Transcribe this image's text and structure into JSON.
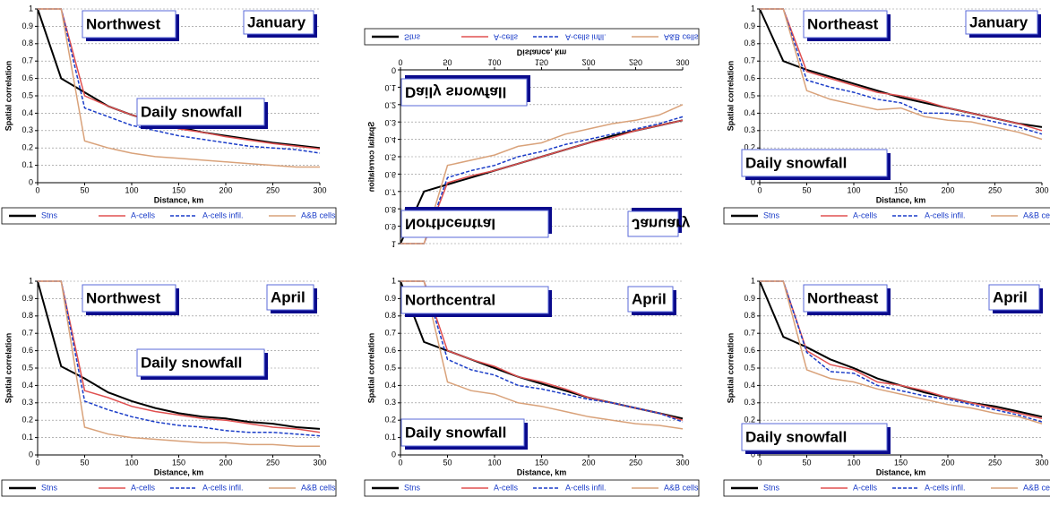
{
  "chart_data": [
    {
      "type": "line",
      "region": "Northwest",
      "month": "January",
      "annotation": "Daily snowfall",
      "xlabel": "Distance, km",
      "ylabel": "Spatial correlation",
      "x": [
        0,
        25,
        50,
        75,
        100,
        125,
        150,
        175,
        200,
        225,
        250,
        275,
        300
      ],
      "xlim": [
        0,
        300
      ],
      "ylim": [
        0,
        1
      ],
      "xticks": [
        0,
        50,
        100,
        150,
        200,
        250,
        300
      ],
      "yticks": [
        0,
        0.1,
        0.2,
        0.3,
        0.4,
        0.5,
        0.6,
        0.7,
        0.8,
        0.9,
        1
      ],
      "grid": true,
      "series": [
        {
          "name": "Stns",
          "color": "#000000",
          "values": [
            1,
            0.6,
            0.52,
            0.44,
            0.39,
            0.35,
            0.32,
            0.29,
            0.27,
            0.25,
            0.23,
            0.215,
            0.2
          ]
        },
        {
          "name": "A-cells",
          "color": "#e05050",
          "values": [
            1,
            1,
            0.5,
            0.44,
            0.39,
            0.35,
            0.31,
            0.29,
            0.265,
            0.245,
            0.225,
            0.21,
            0.195
          ]
        },
        {
          "name": "A-cells infil.",
          "color": "#1a3cc8",
          "dashed": true,
          "values": [
            1,
            1,
            0.43,
            0.38,
            0.33,
            0.3,
            0.27,
            0.25,
            0.23,
            0.21,
            0.2,
            0.19,
            0.17
          ]
        },
        {
          "name": "A&B cells",
          "color": "#d9a27a",
          "values": [
            1,
            1,
            0.24,
            0.2,
            0.17,
            0.15,
            0.14,
            0.13,
            0.12,
            0.11,
            0.1,
            0.09,
            0.09
          ]
        }
      ]
    },
    {
      "type": "line",
      "region": "Northcentral",
      "month": "January",
      "annotation": "Daily snowfall",
      "xlabel": "Distance, km",
      "ylabel": "Spatial correlation",
      "flipped": true,
      "x": [
        0,
        25,
        50,
        75,
        100,
        125,
        150,
        175,
        200,
        225,
        250,
        275,
        300
      ],
      "xlim": [
        0,
        300
      ],
      "ylim": [
        0,
        1
      ],
      "xticks": [
        0,
        50,
        100,
        150,
        200,
        250,
        300
      ],
      "yticks": [
        0,
        0.1,
        0.2,
        0.3,
        0.4,
        0.5,
        0.6,
        0.7,
        0.8,
        0.9,
        1
      ],
      "grid": true,
      "series": [
        {
          "name": "Stns",
          "color": "#000000",
          "values": [
            1,
            0.7,
            0.66,
            0.62,
            0.58,
            0.54,
            0.5,
            0.46,
            0.42,
            0.38,
            0.35,
            0.32,
            0.29
          ]
        },
        {
          "name": "A-cells",
          "color": "#e05050",
          "values": [
            1,
            1,
            0.65,
            0.61,
            0.58,
            0.54,
            0.5,
            0.46,
            0.42,
            0.39,
            0.35,
            0.32,
            0.29
          ]
        },
        {
          "name": "A-cells infil.",
          "color": "#1a3cc8",
          "dashed": true,
          "values": [
            1,
            1,
            0.62,
            0.58,
            0.55,
            0.5,
            0.47,
            0.43,
            0.4,
            0.37,
            0.34,
            0.31,
            0.27
          ]
        },
        {
          "name": "A&B cells",
          "color": "#d9a27a",
          "values": [
            1,
            1,
            0.55,
            0.52,
            0.49,
            0.44,
            0.42,
            0.37,
            0.34,
            0.31,
            0.29,
            0.26,
            0.2
          ]
        }
      ]
    },
    {
      "type": "line",
      "region": "Northeast",
      "month": "January",
      "annotation": "Daily snowfall",
      "xlabel": "Distance, km",
      "ylabel": "Spatial correlation",
      "x": [
        0,
        25,
        50,
        75,
        100,
        125,
        150,
        175,
        200,
        225,
        250,
        275,
        300
      ],
      "xlim": [
        0,
        300
      ],
      "ylim": [
        0,
        1
      ],
      "xticks": [
        0,
        50,
        100,
        150,
        200,
        250,
        300
      ],
      "yticks": [
        0,
        0.1,
        0.2,
        0.3,
        0.4,
        0.5,
        0.6,
        0.7,
        0.8,
        0.9,
        1
      ],
      "grid": true,
      "series": [
        {
          "name": "Stns",
          "color": "#000000",
          "values": [
            1,
            0.7,
            0.65,
            0.61,
            0.57,
            0.53,
            0.49,
            0.46,
            0.43,
            0.4,
            0.37,
            0.34,
            0.32
          ]
        },
        {
          "name": "A-cells",
          "color": "#e05050",
          "values": [
            1,
            1,
            0.64,
            0.6,
            0.56,
            0.52,
            0.5,
            0.47,
            0.43,
            0.4,
            0.37,
            0.34,
            0.3
          ]
        },
        {
          "name": "A-cells infil.",
          "color": "#1a3cc8",
          "dashed": true,
          "values": [
            1,
            1,
            0.59,
            0.55,
            0.52,
            0.48,
            0.46,
            0.4,
            0.4,
            0.38,
            0.35,
            0.32,
            0.28
          ]
        },
        {
          "name": "A&B cells",
          "color": "#d9a27a",
          "values": [
            1,
            1,
            0.53,
            0.48,
            0.45,
            0.42,
            0.43,
            0.38,
            0.36,
            0.35,
            0.32,
            0.29,
            0.25
          ]
        }
      ]
    },
    {
      "type": "line",
      "region": "Northwest",
      "month": "April",
      "annotation": "Daily snowfall",
      "xlabel": "Distance, km",
      "ylabel": "Spatial correlation",
      "x": [
        0,
        25,
        50,
        75,
        100,
        125,
        150,
        175,
        200,
        225,
        250,
        275,
        300
      ],
      "xlim": [
        0,
        300
      ],
      "ylim": [
        0,
        1
      ],
      "xticks": [
        0,
        50,
        100,
        150,
        200,
        250,
        300
      ],
      "yticks": [
        0,
        0.1,
        0.2,
        0.3,
        0.4,
        0.5,
        0.6,
        0.7,
        0.8,
        0.9,
        1
      ],
      "grid": true,
      "series": [
        {
          "name": "Stns",
          "color": "#000000",
          "values": [
            1,
            0.51,
            0.44,
            0.36,
            0.31,
            0.27,
            0.24,
            0.22,
            0.21,
            0.19,
            0.18,
            0.16,
            0.15
          ]
        },
        {
          "name": "A-cells",
          "color": "#e05050",
          "values": [
            1,
            1,
            0.37,
            0.33,
            0.28,
            0.25,
            0.23,
            0.21,
            0.2,
            0.18,
            0.16,
            0.15,
            0.13
          ]
        },
        {
          "name": "A-cells infil.",
          "color": "#1a3cc8",
          "dashed": true,
          "values": [
            1,
            1,
            0.31,
            0.26,
            0.22,
            0.19,
            0.17,
            0.16,
            0.14,
            0.13,
            0.13,
            0.12,
            0.11
          ]
        },
        {
          "name": "A&B cells",
          "color": "#d9a27a",
          "values": [
            1,
            1,
            0.16,
            0.12,
            0.1,
            0.09,
            0.08,
            0.07,
            0.07,
            0.06,
            0.06,
            0.05,
            0.05
          ]
        }
      ]
    },
    {
      "type": "line",
      "region": "Northcentral",
      "month": "April",
      "annotation": "Daily snowfall",
      "xlabel": "Distance, km",
      "ylabel": "Spatial correlation",
      "x": [
        0,
        25,
        50,
        75,
        100,
        125,
        150,
        175,
        200,
        225,
        250,
        275,
        300
      ],
      "xlim": [
        0,
        300
      ],
      "ylim": [
        0,
        1
      ],
      "xticks": [
        0,
        50,
        100,
        150,
        200,
        250,
        300
      ],
      "yticks": [
        0,
        0.1,
        0.2,
        0.3,
        0.4,
        0.5,
        0.6,
        0.7,
        0.8,
        0.9,
        1
      ],
      "grid": true,
      "series": [
        {
          "name": "Stns",
          "color": "#000000",
          "values": [
            1,
            0.65,
            0.6,
            0.55,
            0.5,
            0.45,
            0.41,
            0.37,
            0.33,
            0.3,
            0.27,
            0.24,
            0.21
          ]
        },
        {
          "name": "A-cells",
          "color": "#e05050",
          "values": [
            1,
            1,
            0.6,
            0.55,
            0.51,
            0.45,
            0.42,
            0.38,
            0.33,
            0.3,
            0.27,
            0.24,
            0.2
          ]
        },
        {
          "name": "A-cells infil.",
          "color": "#1a3cc8",
          "dashed": true,
          "values": [
            1,
            1,
            0.55,
            0.49,
            0.46,
            0.4,
            0.38,
            0.35,
            0.32,
            0.3,
            0.27,
            0.24,
            0.19
          ]
        },
        {
          "name": "A&B cells",
          "color": "#d9a27a",
          "values": [
            1,
            1,
            0.42,
            0.37,
            0.35,
            0.3,
            0.28,
            0.25,
            0.22,
            0.2,
            0.18,
            0.17,
            0.15
          ]
        }
      ]
    },
    {
      "type": "line",
      "region": "Northeast",
      "month": "April",
      "annotation": "Daily snowfall",
      "xlabel": "Distance, km",
      "ylabel": "Spatial correlation",
      "x": [
        0,
        25,
        50,
        75,
        100,
        125,
        150,
        175,
        200,
        225,
        250,
        275,
        300
      ],
      "xlim": [
        0,
        300
      ],
      "ylim": [
        0,
        1
      ],
      "xticks": [
        0,
        50,
        100,
        150,
        200,
        250,
        300
      ],
      "yticks": [
        0,
        0.1,
        0.2,
        0.3,
        0.4,
        0.5,
        0.6,
        0.7,
        0.8,
        0.9,
        1
      ],
      "grid": true,
      "series": [
        {
          "name": "Stns",
          "color": "#000000",
          "values": [
            1,
            0.68,
            0.62,
            0.55,
            0.5,
            0.44,
            0.4,
            0.36,
            0.33,
            0.3,
            0.28,
            0.25,
            0.22
          ]
        },
        {
          "name": "A-cells",
          "color": "#e05050",
          "values": [
            1,
            1,
            0.6,
            0.52,
            0.49,
            0.42,
            0.4,
            0.37,
            0.33,
            0.3,
            0.27,
            0.24,
            0.21
          ]
        },
        {
          "name": "A-cells infil.",
          "color": "#1a3cc8",
          "dashed": true,
          "values": [
            1,
            1,
            0.59,
            0.48,
            0.47,
            0.4,
            0.37,
            0.34,
            0.32,
            0.29,
            0.26,
            0.23,
            0.19
          ]
        },
        {
          "name": "A&B cells",
          "color": "#d9a27a",
          "values": [
            1,
            1,
            0.49,
            0.44,
            0.42,
            0.38,
            0.35,
            0.32,
            0.29,
            0.27,
            0.24,
            0.22,
            0.18
          ]
        }
      ]
    }
  ]
}
